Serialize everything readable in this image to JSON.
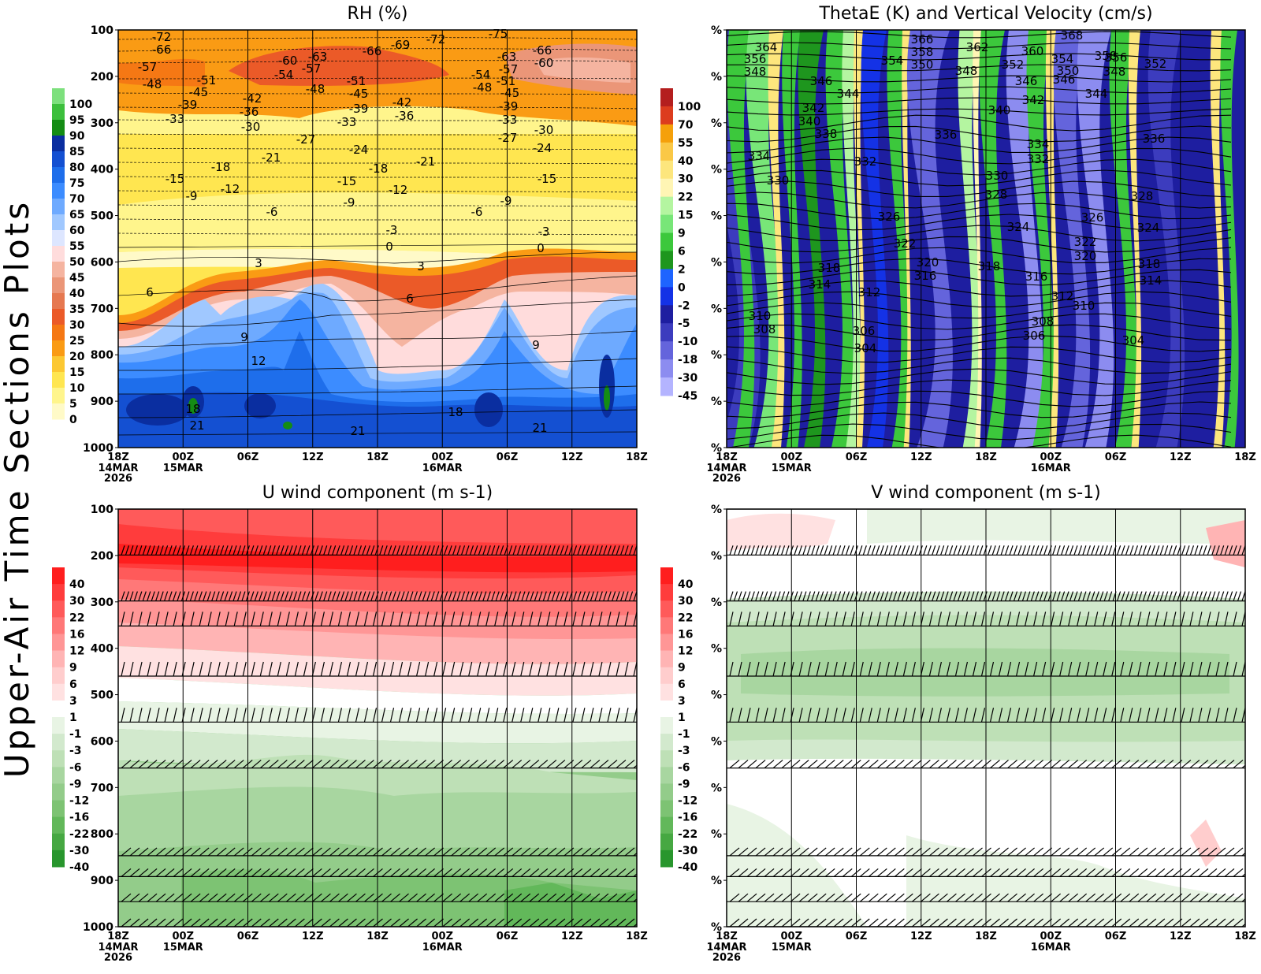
{
  "side_title": "Upper-Air Time Sections Plots",
  "x_ticks": [
    {
      "label": "18Z",
      "sub": [
        "14MAR",
        "2026"
      ]
    },
    {
      "label": "00Z",
      "sub": [
        "15MAR"
      ]
    },
    {
      "label": "06Z",
      "sub": []
    },
    {
      "label": "12Z",
      "sub": []
    },
    {
      "label": "18Z",
      "sub": []
    },
    {
      "label": "00Z",
      "sub": [
        "16MAR"
      ]
    },
    {
      "label": "06Z",
      "sub": []
    },
    {
      "label": "12Z",
      "sub": []
    },
    {
      "label": "18Z",
      "sub": []
    }
  ],
  "p_ticks": [
    "100",
    "200",
    "300",
    "400",
    "500",
    "600",
    "700",
    "800",
    "900",
    "1000"
  ],
  "p_ticks_missing": [
    "%",
    "%",
    "%",
    "%",
    "%",
    "%",
    "%",
    "%",
    "%",
    "%"
  ],
  "chart_data": [
    {
      "type": "heatmap",
      "title": "RH (%)",
      "ylim": [
        1000,
        100
      ],
      "legend_levels": [
        "100",
        "95",
        "90",
        "85",
        "80",
        "75",
        "70",
        "65",
        "60",
        "55",
        "50",
        "45",
        "40",
        "35",
        "30",
        "25",
        "20",
        "15",
        "10",
        "5",
        "0"
      ],
      "legend_colors": [
        "#7de07d",
        "#3cbf3c",
        "#148c14",
        "#0a2ea0",
        "#1450d2",
        "#1e6eeb",
        "#3c8cff",
        "#6eaaff",
        "#a0c8ff",
        "#dde6ff",
        "#ffdcdc",
        "#f5b4a0",
        "#eb9678",
        "#e67850",
        "#eb5a28",
        "#f57814",
        "#fa9b14",
        "#fcc832",
        "#ffe650",
        "#fff58c",
        "#fffac8"
      ],
      "contour_labels": [
        "-72",
        "-66",
        "-57",
        "-48",
        "-51",
        "-45",
        "-39",
        "-33",
        "-42",
        "-36",
        "-30",
        "-60",
        "-54",
        "-63",
        "-57",
        "-48",
        "-66",
        "-51",
        "-45",
        "-39",
        "-33",
        "-69",
        "-72",
        "-42",
        "-36",
        "-75",
        "-63",
        "-57",
        "-54",
        "-51",
        "-48",
        "-45",
        "-39",
        "-33",
        "-66",
        "-60",
        "-30",
        "-27",
        "-27",
        "-24",
        "-24",
        "-21",
        "-21",
        "-18",
        "-18",
        "-15",
        "-15",
        "-15",
        "-12",
        "-12",
        "-9",
        "-9",
        "-9",
        "-6",
        "-6",
        "-3",
        "-3",
        "0",
        "0",
        "3",
        "3",
        "6",
        "6",
        "9",
        "9",
        "12",
        "18",
        "18",
        "21",
        "21",
        "21"
      ],
      "shading": "yellow aloft, orange/red near 200 hPa, blue below 750 hPa"
    },
    {
      "type": "heatmap",
      "title": "ThetaE (K) and Vertical Velocity (cm/s)",
      "legend_levels": [
        "100",
        "70",
        "55",
        "40",
        "30",
        "22",
        "15",
        "9",
        "6",
        "2",
        "0",
        "-2",
        "-5",
        "-10",
        "-18",
        "-30",
        "-45"
      ],
      "legend_colors": [
        "#b41e1e",
        "#dc3c1e",
        "#f5a00a",
        "#fac846",
        "#fde67d",
        "#fff5b4",
        "#b4f5a0",
        "#78e678",
        "#3cc83c",
        "#1e961e",
        "#1e64ff",
        "#1432e6",
        "#1e1ea0",
        "#3c3cbe",
        "#6464dc",
        "#8c8cf0",
        "#b4b4ff"
      ],
      "contour_labels": [
        "364",
        "356",
        "348",
        "366",
        "358",
        "350",
        "362",
        "360",
        "368",
        "354",
        "348",
        "352",
        "346",
        "354",
        "350",
        "346",
        "358",
        "356",
        "348",
        "352",
        "346",
        "344",
        "344",
        "342",
        "342",
        "340",
        "340",
        "338",
        "336",
        "336",
        "334",
        "334",
        "332",
        "332",
        "330",
        "330",
        "328",
        "328",
        "326",
        "326",
        "324",
        "324",
        "322",
        "322",
        "320",
        "320",
        "318",
        "318",
        "318",
        "316",
        "316",
        "314",
        "314",
        "312",
        "312",
        "310",
        "310",
        "308",
        "308",
        "306",
        "306",
        "304",
        "304"
      ]
    },
    {
      "type": "heatmap",
      "title": "U wind component (m s-1)",
      "legend_levels": [
        "40",
        "30",
        "22",
        "16",
        "12",
        "9",
        "6",
        "3",
        "1",
        "-1",
        "-3",
        "-6",
        "-9",
        "-12",
        "-16",
        "-22",
        "-30",
        "-40"
      ],
      "legend_colors": [
        "#ff1e1e",
        "#ff3c3c",
        "#ff5a5a",
        "#ff7878",
        "#ff9696",
        "#ffb4b4",
        "#ffcdcd",
        "#ffe1e1",
        "#ffffff",
        "#e8f4e4",
        "#d2e9cd",
        "#bee0b6",
        "#a8d6a0",
        "#93cc8a",
        "#7dc373",
        "#62b85a",
        "#46a842",
        "#28962d"
      ]
    },
    {
      "type": "heatmap",
      "title": "V wind component (m s-1)",
      "legend_levels": [
        "40",
        "30",
        "22",
        "16",
        "12",
        "9",
        "6",
        "3",
        "1",
        "-1",
        "-3",
        "-6",
        "-9",
        "-12",
        "-16",
        "-22",
        "-30",
        "-40"
      ],
      "legend_colors": [
        "#ff1e1e",
        "#ff3c3c",
        "#ff5a5a",
        "#ff7878",
        "#ff9696",
        "#ffb4b4",
        "#ffcdcd",
        "#ffe1e1",
        "#ffffff",
        "#e8f4e4",
        "#d2e9cd",
        "#bee0b6",
        "#a8d6a0",
        "#93cc8a",
        "#7dc373",
        "#62b85a",
        "#46a842",
        "#28962d"
      ]
    }
  ]
}
